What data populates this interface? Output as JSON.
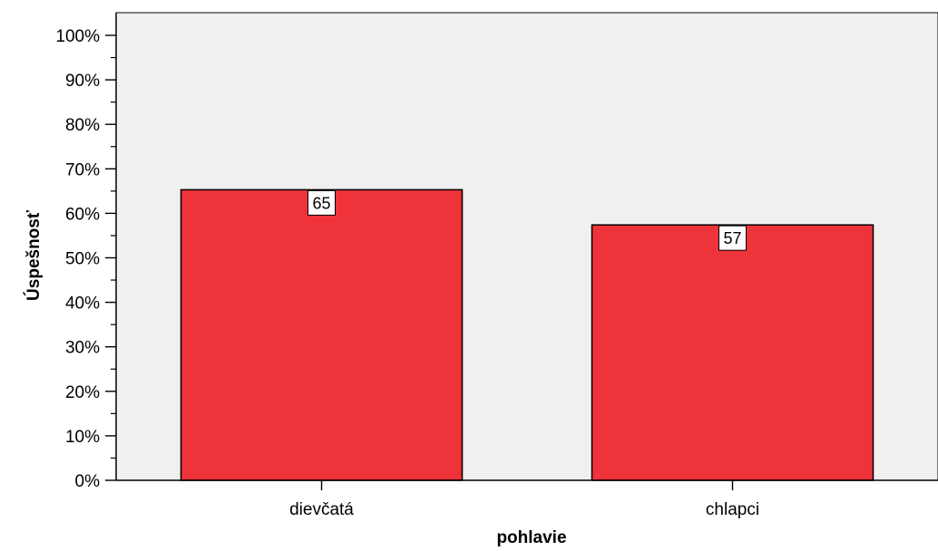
{
  "chart_data": {
    "type": "bar",
    "title": "",
    "xlabel": "pohlavie",
    "ylabel": "Úspešnosť",
    "categories": [
      "dievčatá",
      "chlapci"
    ],
    "values": [
      65.3,
      57.4
    ],
    "data_labels": [
      "65",
      "57"
    ],
    "ylim": [
      0,
      100
    ],
    "y_ticks": [
      0,
      10,
      20,
      30,
      40,
      50,
      60,
      70,
      80,
      90,
      100
    ],
    "y_tick_labels": [
      "0%",
      "10%",
      "20%",
      "30%",
      "40%",
      "50%",
      "60%",
      "70%",
      "80%",
      "90%",
      "100%"
    ],
    "grid": false,
    "legend": "none",
    "colors": {
      "bar_fill": "#ee333b",
      "bar_stroke": "#000000",
      "plot_background": "#f0f0f0",
      "label_box": "#ffffff"
    }
  }
}
